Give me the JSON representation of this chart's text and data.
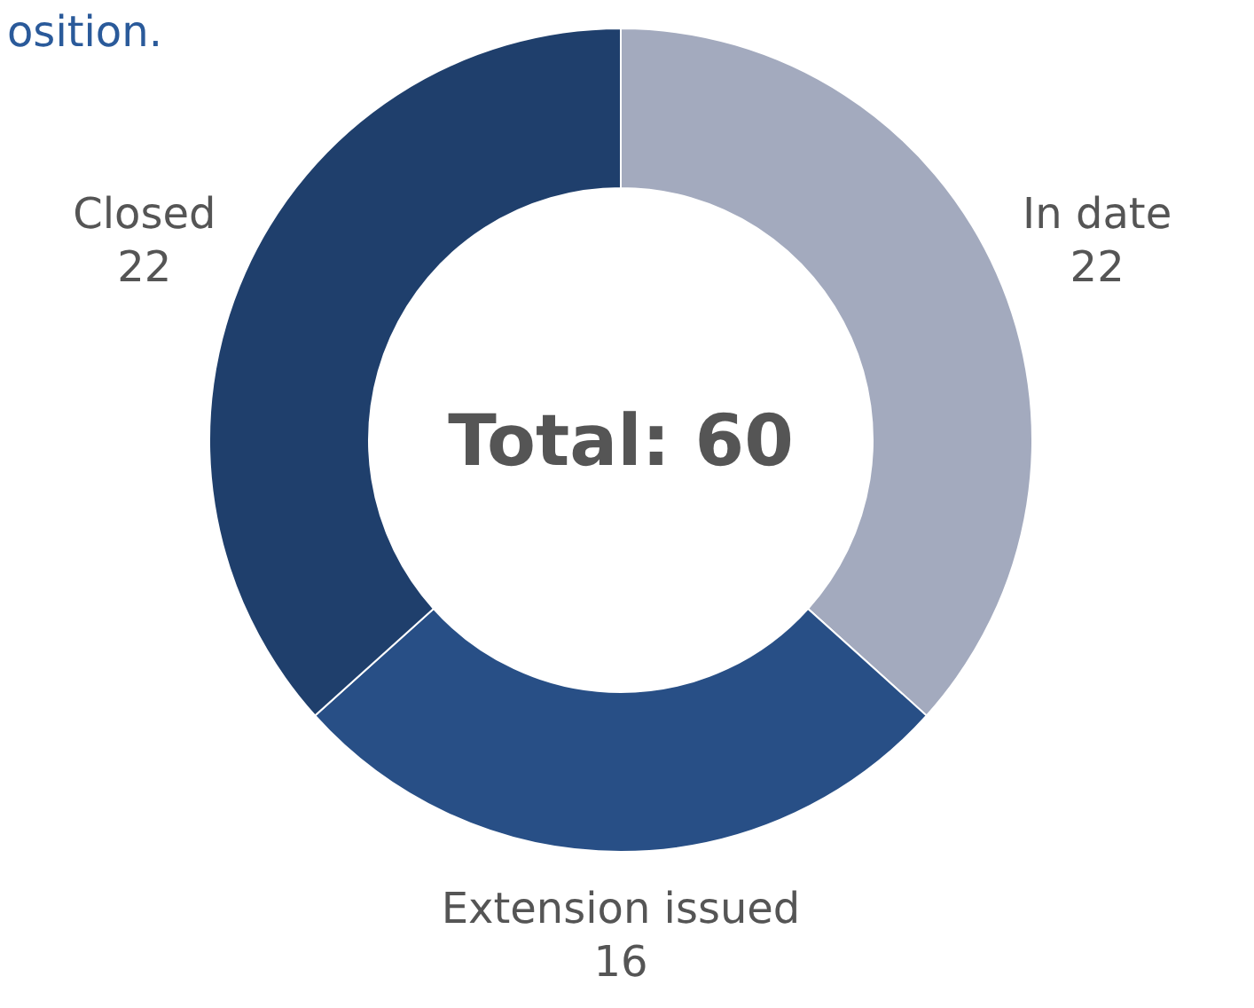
{
  "chart_data": {
    "type": "donut",
    "title": "osition.",
    "categories": [
      "In date",
      "Extension issued",
      "Closed"
    ],
    "values": [
      22,
      16,
      22
    ],
    "colors": [
      "#a3aabe",
      "#284f86",
      "#1f3f6c"
    ],
    "data_labels": true,
    "annotations": [
      "Total: 60"
    ]
  }
}
